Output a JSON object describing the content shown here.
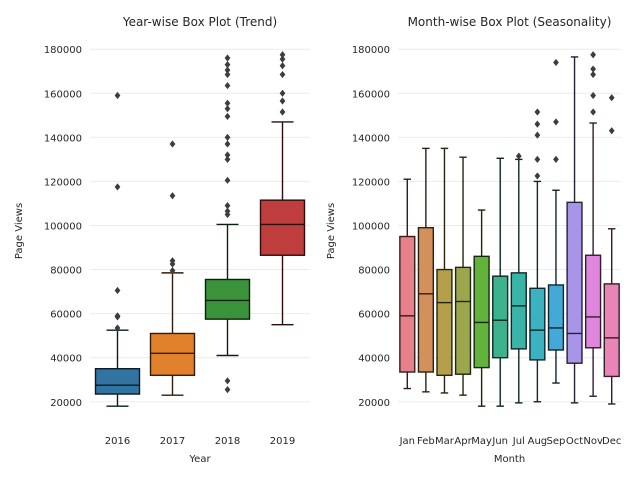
{
  "chart_data": [
    {
      "type": "box",
      "title": "Year-wise Box Plot (Trend)",
      "xlabel": "Year",
      "ylabel": "Page Views",
      "ylim": [
        9000,
        186000
      ],
      "yticks": [
        20000,
        40000,
        60000,
        80000,
        100000,
        120000,
        140000,
        160000,
        180000
      ],
      "grid": true,
      "categories": [
        "2016",
        "2017",
        "2018",
        "2019"
      ],
      "colors": [
        "#3274a1",
        "#e1812c",
        "#3a923a",
        "#c03d3e"
      ],
      "boxes": [
        {
          "whislo": 18000,
          "q1": 23500,
          "med": 27500,
          "q3": 35000,
          "whishi": 52500,
          "fliers": [
            53500,
            58500,
            59000,
            70500,
            117500,
            159000
          ]
        },
        {
          "whislo": 23000,
          "q1": 32000,
          "med": 42000,
          "q3": 51000,
          "whishi": 78500,
          "fliers": [
            79500,
            82500,
            84000,
            113500,
            137000
          ]
        },
        {
          "whislo": 41000,
          "q1": 57500,
          "med": 66000,
          "q3": 75500,
          "whishi": 100500,
          "fliers": [
            25500,
            29500,
            105000,
            106500,
            109000,
            120500,
            130000,
            132000,
            137000,
            140000,
            149500,
            153000,
            155500,
            163500,
            168500,
            170500,
            173000,
            176000
          ]
        },
        {
          "whislo": 55000,
          "q1": 86500,
          "med": 100500,
          "q3": 111500,
          "whishi": 147000,
          "fliers": [
            151500,
            156500,
            160000,
            168500,
            172500,
            175500,
            177500
          ]
        }
      ]
    },
    {
      "type": "box",
      "title": "Month-wise Box Plot (Seasonality)",
      "xlabel": "Month",
      "ylabel": "Page Views",
      "ylim": [
        9000,
        186000
      ],
      "yticks": [
        20000,
        40000,
        60000,
        80000,
        100000,
        120000,
        140000,
        160000,
        180000
      ],
      "grid": true,
      "categories": [
        "Jan",
        "Feb",
        "Mar",
        "Apr",
        "May",
        "Jun",
        "Jul",
        "Aug",
        "Sep",
        "Oct",
        "Nov",
        "Dec"
      ],
      "colors": [
        "#e8808a",
        "#d3905a",
        "#b4a04a",
        "#9aa74c",
        "#62b33c",
        "#3cb38c",
        "#3ab4a8",
        "#3ab2bf",
        "#44a9d6",
        "#a995e8",
        "#e086dc",
        "#e885b6"
      ],
      "boxes": [
        {
          "whislo": 26000,
          "q1": 33500,
          "med": 59000,
          "q3": 95000,
          "whishi": 121000,
          "fliers": []
        },
        {
          "whislo": 24500,
          "q1": 33500,
          "med": 69000,
          "q3": 99000,
          "whishi": 135000,
          "fliers": []
        },
        {
          "whislo": 24000,
          "q1": 32000,
          "med": 65000,
          "q3": 80000,
          "whishi": 135000,
          "fliers": []
        },
        {
          "whislo": 23000,
          "q1": 32500,
          "med": 65500,
          "q3": 81000,
          "whishi": 131000,
          "fliers": []
        },
        {
          "whislo": 18000,
          "q1": 35500,
          "med": 56000,
          "q3": 86000,
          "whishi": 107000,
          "fliers": []
        },
        {
          "whislo": 18000,
          "q1": 40000,
          "med": 57000,
          "q3": 77000,
          "whishi": 130500,
          "fliers": []
        },
        {
          "whislo": 19500,
          "q1": 44000,
          "med": 63500,
          "q3": 78500,
          "whishi": 130000,
          "fliers": [
            131500
          ]
        },
        {
          "whislo": 20000,
          "q1": 39000,
          "med": 52500,
          "q3": 71500,
          "whishi": 120000,
          "fliers": [
            122500,
            130000,
            141000,
            146000,
            151500
          ]
        },
        {
          "whislo": 28500,
          "q1": 43500,
          "med": 53500,
          "q3": 73000,
          "whishi": 116000,
          "fliers": [
            130000,
            147000,
            174000
          ]
        },
        {
          "whislo": 19500,
          "q1": 37500,
          "med": 51000,
          "q3": 110500,
          "whishi": 176500,
          "fliers": []
        },
        {
          "whislo": 22500,
          "q1": 44500,
          "med": 58500,
          "q3": 86500,
          "whishi": 146500,
          "fliers": [
            151500,
            159000,
            168500,
            171000,
            177500
          ]
        },
        {
          "whislo": 19000,
          "q1": 31500,
          "med": 49000,
          "q3": 73500,
          "whishi": 98500,
          "fliers": [
            143000,
            158000
          ]
        }
      ]
    }
  ]
}
